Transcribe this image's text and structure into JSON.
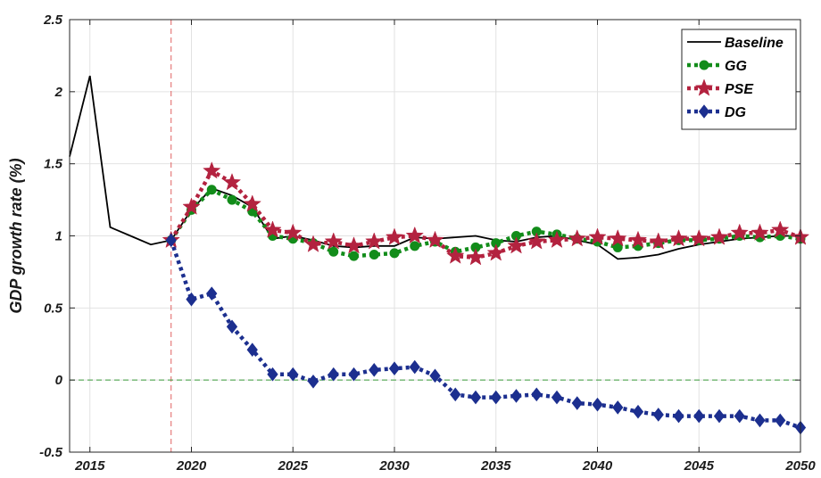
{
  "chart_data": {
    "type": "line",
    "xlabel": "",
    "ylabel": "GDP growth rate (%)",
    "xlim": [
      2014,
      2050
    ],
    "ylim": [
      -0.5,
      2.5
    ],
    "xticks": [
      2015,
      2020,
      2025,
      2030,
      2035,
      2040,
      2045,
      2050
    ],
    "yticks": [
      -0.5,
      0,
      0.5,
      1,
      1.5,
      2,
      2.5
    ],
    "grid": true,
    "legend_position": "top-right",
    "reference_lines": [
      {
        "orientation": "vertical",
        "value": 2019,
        "color": "#e06060",
        "style": "dashed"
      },
      {
        "orientation": "horizontal",
        "value": 0,
        "color": "#3a9a3a",
        "style": "dashed"
      }
    ],
    "series": [
      {
        "name": "Baseline",
        "color": "#000000",
        "line": "solid",
        "marker": "none",
        "x": [
          2014,
          2015,
          2016,
          2017,
          2018,
          2019,
          2020,
          2021,
          2022,
          2023,
          2024,
          2025,
          2026,
          2027,
          2028,
          2029,
          2030,
          2031,
          2032,
          2033,
          2034,
          2035,
          2036,
          2037,
          2038,
          2039,
          2040,
          2041,
          2042,
          2043,
          2044,
          2045,
          2046,
          2047,
          2048,
          2049,
          2050
        ],
        "y": [
          1.55,
          2.11,
          1.06,
          1.0,
          0.94,
          0.97,
          1.18,
          1.33,
          1.28,
          1.2,
          0.98,
          1.0,
          0.97,
          0.93,
          0.92,
          0.93,
          0.93,
          0.99,
          0.98,
          0.99,
          1.0,
          0.97,
          0.96,
          0.99,
          1.0,
          0.97,
          0.94,
          0.84,
          0.85,
          0.87,
          0.91,
          0.94,
          0.96,
          0.98,
          0.99,
          1.0,
          1.0
        ]
      },
      {
        "name": "GG",
        "color": "#128c1a",
        "line": "dotted",
        "marker": "circle",
        "x": [
          2019,
          2020,
          2021,
          2022,
          2023,
          2024,
          2025,
          2026,
          2027,
          2028,
          2029,
          2030,
          2031,
          2032,
          2033,
          2034,
          2035,
          2036,
          2037,
          2038,
          2039,
          2040,
          2041,
          2042,
          2043,
          2044,
          2045,
          2046,
          2047,
          2048,
          2049,
          2050
        ],
        "y": [
          0.97,
          1.18,
          1.32,
          1.25,
          1.17,
          1.0,
          0.98,
          0.95,
          0.89,
          0.86,
          0.87,
          0.88,
          0.93,
          0.96,
          0.89,
          0.92,
          0.95,
          1.0,
          1.03,
          1.01,
          0.98,
          0.96,
          0.92,
          0.93,
          0.95,
          0.97,
          0.97,
          0.98,
          1.0,
          0.99,
          1.0,
          0.98
        ]
      },
      {
        "name": "PSE",
        "color": "#b3223f",
        "line": "dotted",
        "marker": "star",
        "x": [
          2019,
          2020,
          2021,
          2022,
          2023,
          2024,
          2025,
          2026,
          2027,
          2028,
          2029,
          2030,
          2031,
          2032,
          2033,
          2034,
          2035,
          2036,
          2037,
          2038,
          2039,
          2040,
          2041,
          2042,
          2043,
          2044,
          2045,
          2046,
          2047,
          2048,
          2049,
          2050
        ],
        "y": [
          0.97,
          1.2,
          1.45,
          1.37,
          1.22,
          1.04,
          1.02,
          0.94,
          0.96,
          0.93,
          0.96,
          0.99,
          1.0,
          0.97,
          0.86,
          0.85,
          0.88,
          0.93,
          0.96,
          0.97,
          0.98,
          0.99,
          0.98,
          0.97,
          0.96,
          0.98,
          0.98,
          0.99,
          1.02,
          1.02,
          1.04,
          0.99
        ]
      },
      {
        "name": "DG",
        "color": "#1c2f8f",
        "line": "dotted",
        "marker": "diamond",
        "x": [
          2019,
          2020,
          2021,
          2022,
          2023,
          2024,
          2025,
          2026,
          2027,
          2028,
          2029,
          2030,
          2031,
          2032,
          2033,
          2034,
          2035,
          2036,
          2037,
          2038,
          2039,
          2040,
          2041,
          2042,
          2043,
          2044,
          2045,
          2046,
          2047,
          2048,
          2049,
          2050
        ],
        "y": [
          0.97,
          0.56,
          0.6,
          0.37,
          0.21,
          0.04,
          0.04,
          -0.01,
          0.04,
          0.04,
          0.07,
          0.08,
          0.09,
          0.03,
          -0.1,
          -0.12,
          -0.12,
          -0.11,
          -0.1,
          -0.12,
          -0.16,
          -0.17,
          -0.19,
          -0.22,
          -0.24,
          -0.25,
          -0.25,
          -0.25,
          -0.25,
          -0.28,
          -0.28,
          -0.33
        ]
      }
    ]
  }
}
